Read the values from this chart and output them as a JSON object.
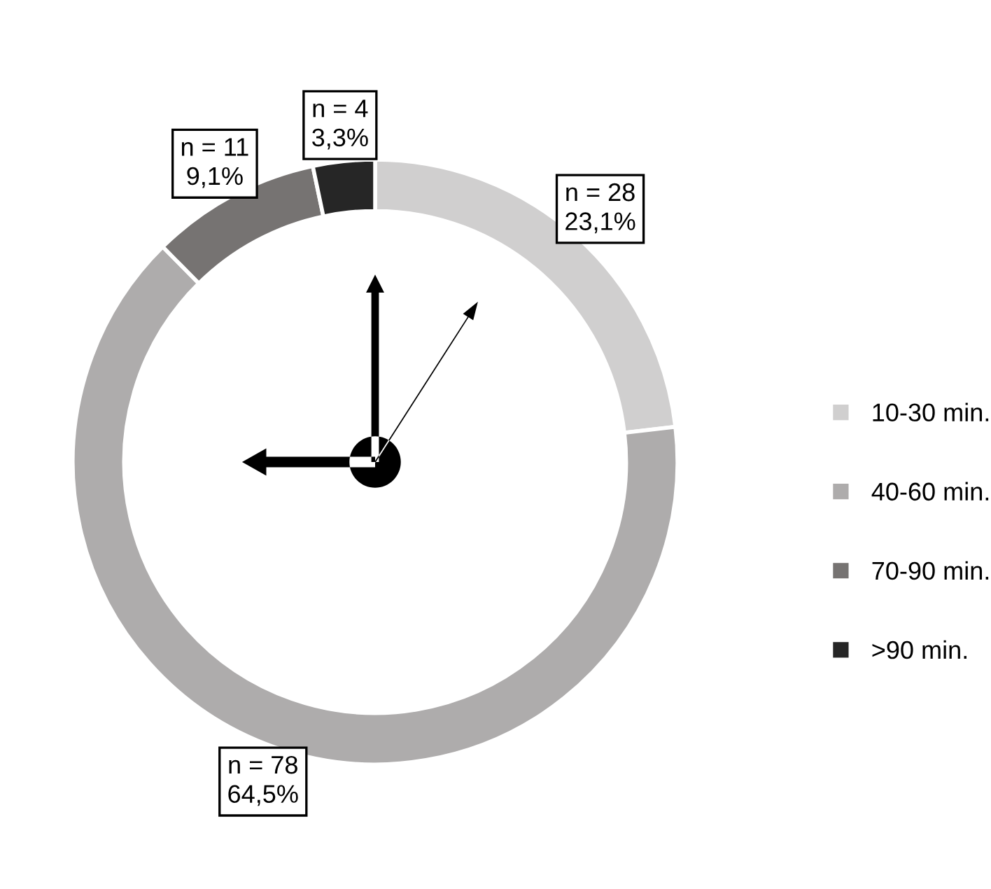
{
  "chart_data": {
    "type": "donut",
    "categories": [
      "10-30 min.",
      "40-60 min.",
      "70-90 min.",
      ">90 min."
    ],
    "values": [
      28,
      78,
      11,
      4
    ],
    "colors": [
      "#d0cfcf",
      "#aeacac",
      "#767372",
      "#262626"
    ],
    "value_labels": [
      "n = 28\n23,1%",
      "n = 78\n64,5%",
      "n = 11\n9,1%",
      "n = 4\n3,3%"
    ],
    "legend": "right"
  }
}
